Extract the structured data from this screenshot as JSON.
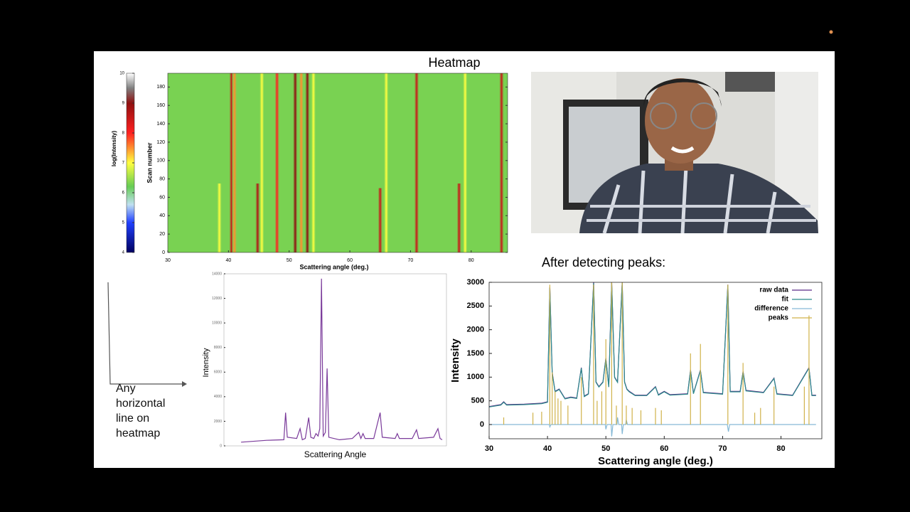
{
  "slide": {
    "title": "Heatmap",
    "peaks_heading": "After detecting peaks:",
    "note": "Any horizontal line on heatmap"
  },
  "chart_data": [
    {
      "type": "heatmap",
      "xlabel": "Scattering angle (deg.)",
      "ylabel": "Scan number",
      "colorbar_label": "log(Intensity)",
      "xlim": [
        30,
        86
      ],
      "xticks": [
        30,
        40,
        50,
        60,
        70,
        80
      ],
      "ylim": [
        0,
        195
      ],
      "yticks": [
        0,
        20,
        40,
        60,
        80,
        100,
        120,
        140,
        160,
        180
      ],
      "clim": [
        4,
        10
      ],
      "cticks": [
        4,
        5,
        6,
        7,
        8,
        9,
        10
      ],
      "background": 6.3,
      "x": [
        38.5,
        40.5,
        41,
        44.8,
        45.5,
        48,
        51,
        52,
        53,
        54,
        65,
        66,
        71,
        78,
        79,
        85
      ],
      "values": [
        7,
        8.5,
        7.5,
        8.7,
        7,
        8,
        9,
        7.5,
        9,
        7,
        8.5,
        7,
        8.5,
        8.5,
        7,
        8.5
      ],
      "y_from": [
        0,
        0,
        0,
        0,
        0,
        0,
        0,
        0,
        0,
        0,
        0,
        0,
        0,
        0,
        0,
        0
      ],
      "y_to": [
        75,
        195,
        195,
        75,
        195,
        195,
        195,
        195,
        195,
        195,
        70,
        195,
        195,
        75,
        195,
        195
      ]
    },
    {
      "type": "line",
      "ylabel": "Intensity",
      "xlabel": "Scattering Angle",
      "xlim": [
        26,
        78
      ],
      "ylim": [
        0,
        14000
      ],
      "yticks": [
        0,
        2000,
        4000,
        6000,
        8000,
        10000,
        12000,
        14000
      ],
      "series": [
        {
          "name": null,
          "color": "#7a3a9a",
          "x": [
            30,
            36,
            40,
            40.4,
            40.8,
            43,
            43.8,
            44.3,
            45,
            45.8,
            46.3,
            47,
            47.5,
            48,
            48.4,
            48.8,
            49.2,
            49.7,
            50.1,
            50.5,
            53,
            56,
            57.5,
            58,
            58.5,
            59,
            61,
            62.5,
            63,
            66,
            66.5,
            67,
            69,
            70,
            71,
            71.5,
            75,
            76,
            76.5,
            77
          ],
          "values": [
            300,
            450,
            500,
            2700,
            700,
            600,
            1400,
            500,
            600,
            2300,
            700,
            600,
            1000,
            800,
            1400,
            13600,
            800,
            1100,
            6300,
            700,
            500,
            600,
            1100,
            600,
            1000,
            600,
            600,
            2700,
            700,
            600,
            1000,
            600,
            600,
            600,
            1300,
            600,
            700,
            1400,
            600,
            500
          ]
        }
      ]
    },
    {
      "type": "line",
      "xlabel": "Scattering angle (deg.)",
      "ylabel": "Intensity",
      "xlim": [
        30,
        87
      ],
      "ylim": [
        -300,
        3000
      ],
      "xticks": [
        30,
        40,
        50,
        60,
        70,
        80
      ],
      "yticks": [
        0,
        500,
        1000,
        1500,
        2000,
        2500,
        3000
      ],
      "legend": "upper right",
      "series": [
        {
          "name": "raw data",
          "color": "#5b2a86",
          "style": "line",
          "x": [
            30,
            32,
            32.5,
            33,
            36,
            39,
            40,
            40.4,
            40.8,
            41.3,
            42,
            43,
            44,
            45,
            45.8,
            46.3,
            47,
            47.9,
            48.3,
            48.8,
            49.5,
            50,
            50.5,
            51,
            51.5,
            52,
            52.8,
            53.2,
            53.6,
            54,
            55,
            57,
            58.5,
            59,
            60,
            61,
            64,
            64.5,
            65,
            66.2,
            66.7,
            70,
            70.9,
            71.3,
            73,
            73.5,
            74,
            77,
            78.8,
            79.3,
            82,
            84.8,
            85.3,
            86
          ],
          "values": [
            380,
            420,
            480,
            420,
            430,
            450,
            480,
            2900,
            1100,
            700,
            750,
            550,
            580,
            560,
            1200,
            600,
            650,
            3000,
            900,
            800,
            900,
            1400,
            800,
            3000,
            1000,
            900,
            3000,
            900,
            750,
            700,
            620,
            620,
            800,
            630,
            700,
            630,
            650,
            1150,
            660,
            1150,
            680,
            650,
            2950,
            700,
            700,
            1120,
            720,
            680,
            980,
            650,
            620,
            1200,
            620,
            620
          ]
        },
        {
          "name": "fit",
          "color": "#2a8a8a",
          "style": "line",
          "x": [
            30,
            32,
            32.5,
            33,
            36,
            39,
            40,
            40.4,
            40.8,
            41.3,
            42,
            43,
            44,
            45,
            45.8,
            46.3,
            47,
            47.9,
            48.3,
            48.8,
            49.5,
            50,
            50.5,
            51,
            51.5,
            52,
            52.8,
            53.2,
            53.6,
            54,
            55,
            57,
            58.5,
            59,
            60,
            61,
            64,
            64.5,
            65,
            66.2,
            66.7,
            70,
            70.9,
            71.3,
            73,
            73.5,
            74,
            77,
            78.8,
            79.3,
            82,
            84.8,
            85.3,
            86
          ],
          "values": [
            370,
            410,
            470,
            410,
            420,
            440,
            470,
            2880,
            1080,
            690,
            740,
            540,
            570,
            550,
            1190,
            590,
            640,
            2980,
            890,
            790,
            890,
            1390,
            790,
            2990,
            990,
            890,
            2990,
            890,
            740,
            690,
            610,
            610,
            790,
            620,
            690,
            620,
            640,
            1140,
            650,
            1140,
            670,
            640,
            2940,
            690,
            690,
            1110,
            710,
            670,
            970,
            640,
            610,
            1190,
            610,
            610
          ]
        },
        {
          "name": "difference",
          "color": "#86b9d6",
          "style": "line",
          "x": [
            30,
            40.3,
            40.4,
            40.6,
            49.9,
            50,
            50.2,
            50.9,
            51,
            51.2,
            51.9,
            52,
            52.2,
            52.7,
            52.8,
            53,
            53.4,
            53.5,
            53.7,
            70.8,
            71,
            71.2,
            86
          ],
          "values": [
            0,
            0,
            -50,
            0,
            0,
            -100,
            0,
            0,
            -250,
            0,
            0,
            150,
            0,
            0,
            -200,
            0,
            0,
            100,
            0,
            0,
            -150,
            0,
            0
          ]
        },
        {
          "name": "peaks",
          "color": "#d0b24a",
          "style": "stem",
          "x": [
            32.5,
            37.5,
            39,
            40.4,
            40.8,
            41.3,
            41.8,
            42.3,
            43.5,
            45.8,
            47.9,
            48.5,
            49.3,
            50,
            51,
            51.8,
            52.8,
            53.5,
            54.5,
            56,
            58.5,
            59.5,
            64.5,
            66.2,
            70.9,
            73.5,
            75.5,
            76.5,
            78.8,
            84,
            84.8
          ],
          "values": [
            150,
            250,
            270,
            2950,
            1100,
            700,
            550,
            500,
            400,
            1000,
            2950,
            500,
            700,
            1800,
            3000,
            400,
            3000,
            400,
            350,
            300,
            350,
            300,
            1500,
            1700,
            2950,
            1300,
            250,
            350,
            800,
            800,
            2300
          ]
        }
      ]
    }
  ]
}
